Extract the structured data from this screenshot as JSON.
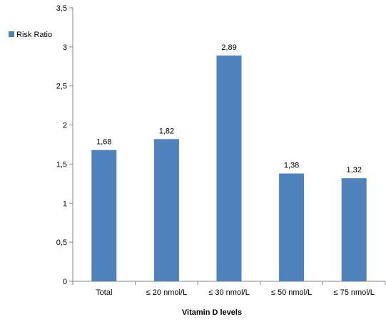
{
  "chart_data": {
    "type": "bar",
    "title": "",
    "xlabel": "Vitamin D levels",
    "ylabel": "",
    "categories": [
      "Total",
      "≤ 20 nmol/L",
      "≤ 30 nmol/L",
      "≤ 50 nmol/L",
      "≤ 75 nmol/L"
    ],
    "series": [
      {
        "name": "Risk Ratio",
        "values": [
          1.68,
          1.82,
          2.89,
          1.38,
          1.32
        ],
        "value_labels": [
          "1,68",
          "1,82",
          "2,89",
          "1,38",
          "1,32"
        ],
        "color": "#4f81bd"
      }
    ],
    "ylim": [
      0,
      3.5
    ],
    "yticks": [
      0,
      0.5,
      1,
      1.5,
      2,
      2.5,
      3,
      3.5
    ],
    "ytick_labels": [
      "0",
      "0,5",
      "1",
      "1,5",
      "2",
      "2,5",
      "3",
      "3,5"
    ],
    "grid": false,
    "legend": {
      "position": "top-left",
      "entries": [
        "Risk Ratio"
      ]
    }
  }
}
